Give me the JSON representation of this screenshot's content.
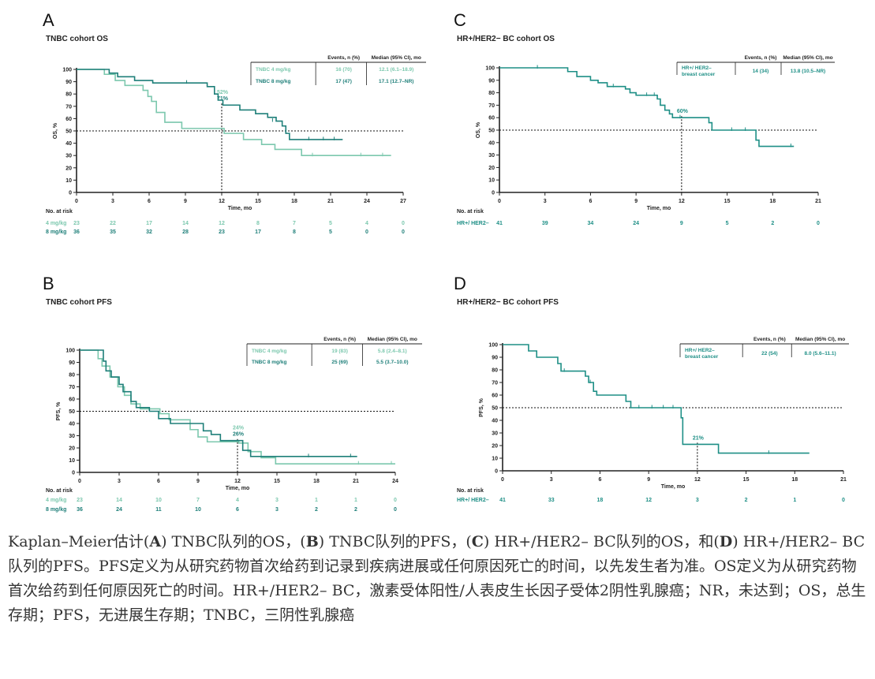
{
  "colors": {
    "dose4": "#7cc8ae",
    "dose8": "#1e7f79",
    "hr": "#1e8f86",
    "axis": "#222222",
    "text": "#333333"
  },
  "caption": {
    "p1": "Kaplan–Meier估计(",
    "b1": "A",
    "p2": ") TNBC队列的OS，(",
    "b2": "B",
    "p3": ") TNBC队列的PFS，(",
    "b3": "C",
    "p4": ") HR+/HER2– BC队列的OS，和(",
    "b4": "D",
    "p5": ") HR+/HER2– BC队列的PFS。PFS定义为从研究药物首次给药到记录到疾病进展或任何原因死亡的时间，以先发生者为准。OS定义为从研究药物首次给药到任何原因死亡的时间。HR+/HER2– BC，激素受体阳性/人表皮生长因子受体2阴性乳腺癌；NR，未达到；OS，总生存期；PFS，无进展生存期；TNBC，三阴性乳腺癌"
  },
  "chart_data": [
    {
      "type": "line",
      "panel": "A",
      "title": "TNBC cohort OS",
      "xlabel": "Time, mo",
      "ylabel": "OS, %",
      "xlim": [
        0,
        27
      ],
      "ylim": [
        0,
        100
      ],
      "xticks": [
        0,
        3,
        6,
        9,
        12,
        15,
        18,
        21,
        24,
        27
      ],
      "yticks": [
        0,
        10,
        20,
        30,
        40,
        50,
        60,
        70,
        80,
        90,
        100
      ],
      "median_line": 50,
      "landmark_x": 12,
      "landmark_labels": [
        {
          "text": "52%",
          "series": 0,
          "y": 52
        },
        {
          "text": "71%",
          "series": 1,
          "y": 71
        }
      ],
      "legend_header": [
        "Events, n (%)",
        "Median (95% CI), mo"
      ],
      "series": [
        {
          "name": "TNBC 4 mg/kg",
          "events": "16 (70)",
          "median": "12.1 (6.1–18.9)",
          "steps": [
            [
              0,
              100
            ],
            [
              2.3,
              96
            ],
            [
              3.2,
              91
            ],
            [
              4,
              87
            ],
            [
              5.5,
              83
            ],
            [
              5.9,
              78
            ],
            [
              6.2,
              74
            ],
            [
              6.6,
              65
            ],
            [
              7.3,
              57
            ],
            [
              8.7,
              52
            ],
            [
              12.2,
              48
            ],
            [
              13.8,
              43
            ],
            [
              15.3,
              39
            ],
            [
              16.4,
              35
            ],
            [
              18.6,
              30
            ],
            [
              26,
              30
            ]
          ],
          "censors": [
            [
              19.5,
              30
            ],
            [
              23.5,
              30
            ],
            [
              25.3,
              30
            ]
          ]
        },
        {
          "name": "TNBC 8 mg/kg",
          "events": "17 (47)",
          "median": "17.1 (12.7–NR)",
          "steps": [
            [
              0,
              100
            ],
            [
              2.7,
              97
            ],
            [
              3.4,
              94
            ],
            [
              4.8,
              91
            ],
            [
              6.3,
              89
            ],
            [
              10.8,
              86
            ],
            [
              11.4,
              80
            ],
            [
              11.7,
              75
            ],
            [
              12.1,
              71
            ],
            [
              13.5,
              67
            ],
            [
              14.8,
              64
            ],
            [
              15.8,
              61
            ],
            [
              16.5,
              58
            ],
            [
              17,
              54
            ],
            [
              17.3,
              48
            ],
            [
              17.6,
              43
            ],
            [
              22,
              43
            ]
          ],
          "censors": [
            [
              9.1,
              89
            ],
            [
              16.2,
              58
            ],
            [
              19.2,
              43
            ],
            [
              20.4,
              43
            ],
            [
              21.3,
              43
            ]
          ]
        }
      ],
      "risk_table": {
        "title": "No. at risk",
        "times": [
          0,
          3,
          6,
          9,
          12,
          15,
          18,
          21,
          24,
          27
        ],
        "rows": [
          {
            "label": "4 mg/kg",
            "values": [
              "23",
              "22",
              "17",
              "14",
              "12",
              "8",
              "7",
              "5",
              "4",
              "0"
            ]
          },
          {
            "label": "8 mg/kg",
            "values": [
              "36",
              "35",
              "32",
              "28",
              "23",
              "17",
              "8",
              "5",
              "0",
              "0"
            ]
          }
        ]
      }
    },
    {
      "type": "line",
      "panel": "B",
      "title": "TNBC cohort PFS",
      "xlabel": "Time, mo",
      "ylabel": "PFS, %",
      "xlim": [
        0,
        24
      ],
      "ylim": [
        0,
        100
      ],
      "xticks": [
        0,
        3,
        6,
        9,
        12,
        15,
        18,
        21,
        24
      ],
      "yticks": [
        0,
        10,
        20,
        30,
        40,
        50,
        60,
        70,
        80,
        90,
        100
      ],
      "median_line": 50,
      "landmark_x": 12,
      "landmark_labels": [
        {
          "text": "24%",
          "series": 0,
          "y": 24
        },
        {
          "text": "26%",
          "series": 1,
          "y": 26
        }
      ],
      "legend_header": [
        "Events, n (%)",
        "Median (95% CI), mo"
      ],
      "series": [
        {
          "name": "TNBC 4 mg/kg",
          "events": "19 (83)",
          "median": "5.8 (2.4–8.1)",
          "steps": [
            [
              0,
              100
            ],
            [
              1.4,
              93
            ],
            [
              1.7,
              87
            ],
            [
              2.3,
              78
            ],
            [
              2.9,
              70
            ],
            [
              3.4,
              63
            ],
            [
              3.9,
              56
            ],
            [
              4.6,
              52
            ],
            [
              6.1,
              48
            ],
            [
              6.8,
              43
            ],
            [
              8.4,
              35
            ],
            [
              9,
              29
            ],
            [
              9.7,
              25
            ],
            [
              12.1,
              24
            ],
            [
              12.8,
              17
            ],
            [
              13.8,
              12
            ],
            [
              14.9,
              7
            ],
            [
              24,
              7
            ]
          ],
          "censors": [
            [
              21.2,
              7
            ],
            [
              23.7,
              7
            ]
          ]
        },
        {
          "name": "TNBC 8 mg/kg",
          "events": "25 (69)",
          "median": "5.5 (3.7–10.0)",
          "steps": [
            [
              0,
              100
            ],
            [
              1.8,
              91
            ],
            [
              2,
              83
            ],
            [
              2.4,
              78
            ],
            [
              3,
              72
            ],
            [
              3.3,
              66
            ],
            [
              3.9,
              58
            ],
            [
              4.3,
              53
            ],
            [
              5.3,
              50
            ],
            [
              6,
              44
            ],
            [
              6.9,
              40
            ],
            [
              9.4,
              34
            ],
            [
              10,
              31
            ],
            [
              10.7,
              26
            ],
            [
              12.4,
              18
            ],
            [
              13,
              13
            ],
            [
              21.1,
              13
            ]
          ],
          "censors": [
            [
              17.4,
              13
            ],
            [
              20.6,
              13
            ]
          ]
        }
      ],
      "risk_table": {
        "title": "No. at risk",
        "times": [
          0,
          3,
          6,
          9,
          12,
          15,
          18,
          21,
          24
        ],
        "rows": [
          {
            "label": "4 mg/kg",
            "values": [
              "23",
              "14",
              "10",
              "7",
              "4",
              "3",
              "1",
              "1",
              "0"
            ]
          },
          {
            "label": "8 mg/kg",
            "values": [
              "36",
              "24",
              "11",
              "10",
              "6",
              "3",
              "2",
              "2",
              "0"
            ]
          }
        ]
      }
    },
    {
      "type": "line",
      "panel": "C",
      "title": "HR+/HER2− BC cohort OS",
      "xlabel": "Time, mo",
      "ylabel": "OS, %",
      "xlim": [
        0,
        21
      ],
      "ylim": [
        0,
        100
      ],
      "xticks": [
        0,
        3,
        6,
        9,
        12,
        15,
        18,
        21
      ],
      "yticks": [
        0,
        10,
        20,
        30,
        40,
        50,
        60,
        70,
        80,
        90,
        100
      ],
      "median_line": 50,
      "landmark_x": 12,
      "landmark_labels": [
        {
          "text": "60%",
          "series": 0,
          "y": 60
        }
      ],
      "legend_header": [
        "Events, n (%)",
        "Median (95% CI), mo"
      ],
      "series": [
        {
          "name": "HR+/ HER2– breast cancer",
          "events": "14 (34)",
          "median": "13.8 (10.5–NR)",
          "steps": [
            [
              0,
              100
            ],
            [
              4.5,
              97
            ],
            [
              5.1,
              93
            ],
            [
              6,
              90
            ],
            [
              6.5,
              88
            ],
            [
              7.1,
              85
            ],
            [
              8.3,
              83
            ],
            [
              8.6,
              80
            ],
            [
              9,
              78
            ],
            [
              10.4,
              75
            ],
            [
              10.6,
              70
            ],
            [
              10.9,
              66
            ],
            [
              11.2,
              63
            ],
            [
              11.4,
              60
            ],
            [
              13.8,
              56
            ],
            [
              14,
              50
            ],
            [
              16.9,
              42
            ],
            [
              17.1,
              37
            ],
            [
              19.4,
              37
            ]
          ],
          "censors": [
            [
              2.5,
              100
            ],
            [
              7.5,
              85
            ],
            [
              9.7,
              78
            ],
            [
              10.2,
              78
            ],
            [
              11.9,
              60
            ],
            [
              15.3,
              50
            ],
            [
              16.2,
              50
            ],
            [
              19.2,
              37
            ]
          ]
        }
      ],
      "risk_table": {
        "title": "No. at risk",
        "times": [
          0,
          3,
          6,
          9,
          12,
          15,
          18,
          21
        ],
        "rows": [
          {
            "label": "HR+/ HER2–",
            "values": [
              "41",
              "39",
              "34",
              "24",
              "9",
              "5",
              "2",
              "0"
            ]
          }
        ]
      }
    },
    {
      "type": "line",
      "panel": "D",
      "title": "HR+/HER2− BC cohort PFS",
      "xlabel": "Time, mo",
      "ylabel": "PFS, %",
      "xlim": [
        0,
        21
      ],
      "ylim": [
        0,
        100
      ],
      "xticks": [
        0,
        3,
        6,
        9,
        12,
        15,
        18,
        21
      ],
      "yticks": [
        0,
        10,
        20,
        30,
        40,
        50,
        60,
        70,
        80,
        90,
        100
      ],
      "median_line": 50,
      "landmark_x": 12,
      "landmark_labels": [
        {
          "text": "21%",
          "series": 0,
          "y": 21
        }
      ],
      "legend_header": [
        "Events, n (%)",
        "Median (95% CI), mo"
      ],
      "series": [
        {
          "name": "HR+/ HER2– breast cancer",
          "events": "22 (54)",
          "median": "8.0 (5.6–11.1)",
          "steps": [
            [
              0,
              100
            ],
            [
              1.6,
              95
            ],
            [
              2.1,
              90
            ],
            [
              3.4,
              85
            ],
            [
              3.6,
              79
            ],
            [
              5.1,
              75
            ],
            [
              5.3,
              70
            ],
            [
              5.6,
              63
            ],
            [
              5.8,
              60
            ],
            [
              7.6,
              55
            ],
            [
              7.9,
              50
            ],
            [
              11,
              42
            ],
            [
              11.1,
              21
            ],
            [
              13.3,
              14
            ],
            [
              18.9,
              14
            ]
          ],
          "censors": [
            [
              3.8,
              79
            ],
            [
              5.4,
              70
            ],
            [
              8.4,
              50
            ],
            [
              9.2,
              50
            ],
            [
              9.9,
              50
            ],
            [
              10.5,
              50
            ],
            [
              16.4,
              14
            ]
          ]
        }
      ],
      "risk_table": {
        "title": "No. at risk",
        "times": [
          0,
          3,
          6,
          9,
          12,
          15,
          18,
          21
        ],
        "rows": [
          {
            "label": "HR+/ HER2–",
            "values": [
              "41",
              "33",
              "18",
              "12",
              "3",
              "2",
              "1",
              "0"
            ]
          }
        ]
      }
    }
  ]
}
